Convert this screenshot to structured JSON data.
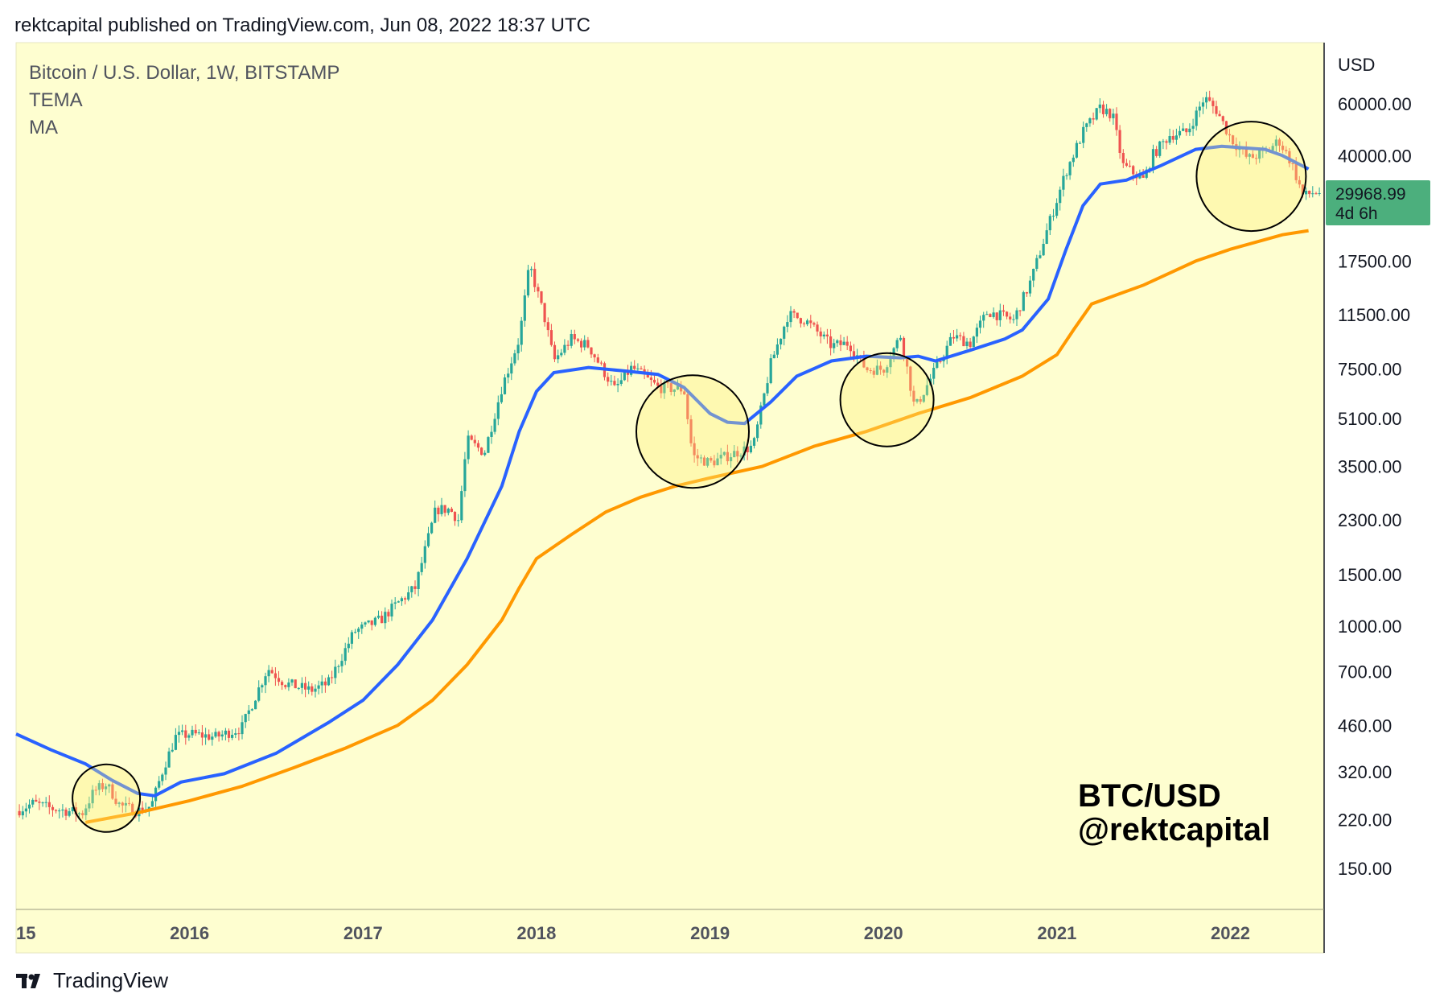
{
  "publisher": "rektcapital published on TradingView.com, Jun 08, 2022 18:37 UTC",
  "chart": {
    "legend": [
      "Bitcoin / U.S. Dollar, 1W, BITSTAMP",
      "TEMA",
      "MA"
    ],
    "currency_label": "USD",
    "watermark": [
      "BTC/USD",
      "@rektcapital"
    ],
    "last_price": "29968.99",
    "countdown": "4d 6h"
  },
  "footer": {
    "brand": "TradingView"
  },
  "colors": {
    "background": "#fefed0",
    "up": "#26a69a",
    "down": "#ef5350",
    "tema": "#2962ff",
    "ma": "#ff9800",
    "price_tag": "#4caf7d"
  },
  "chart_data": {
    "type": "candlestick",
    "title": "Bitcoin / U.S. Dollar, 1W, BITSTAMP",
    "y_scale": "log",
    "y_ticks": [
      150,
      220,
      320,
      460,
      700,
      1000,
      1500,
      2300,
      3500,
      5100,
      7500,
      11500,
      17500,
      40000,
      60000
    ],
    "y_tick_labels": [
      "150.00",
      "220.00",
      "320.00",
      "460.00",
      "700.00",
      "1000.00",
      "1500.00",
      "2300.00",
      "3500.00",
      "5100.00",
      "7500.00",
      "11500.00",
      "17500.00",
      "40000.00",
      "60000.00"
    ],
    "x_ticks": [
      {
        "label": "15",
        "t": 2015.0
      },
      {
        "label": "2016",
        "t": 2016.0
      },
      {
        "label": "2017",
        "t": 2017.0
      },
      {
        "label": "2018",
        "t": 2018.0
      },
      {
        "label": "2019",
        "t": 2019.0
      },
      {
        "label": "2020",
        "t": 2020.0
      },
      {
        "label": "2021",
        "t": 2021.0
      },
      {
        "label": "2022",
        "t": 2022.0
      }
    ],
    "x_range": [
      2015.0,
      2022.54
    ],
    "price_anchors": [
      [
        2015.0,
        235
      ],
      [
        2015.1,
        250
      ],
      [
        2015.2,
        240
      ],
      [
        2015.3,
        235
      ],
      [
        2015.38,
        230
      ],
      [
        2015.45,
        275
      ],
      [
        2015.52,
        290
      ],
      [
        2015.6,
        245
      ],
      [
        2015.7,
        235
      ],
      [
        2015.78,
        245
      ],
      [
        2015.85,
        330
      ],
      [
        2015.92,
        420
      ],
      [
        2016.0,
        430
      ],
      [
        2016.15,
        420
      ],
      [
        2016.3,
        450
      ],
      [
        2016.45,
        720
      ],
      [
        2016.55,
        640
      ],
      [
        2016.7,
        605
      ],
      [
        2016.8,
        640
      ],
      [
        2016.95,
        960
      ],
      [
        2017.1,
        1050
      ],
      [
        2017.2,
        1200
      ],
      [
        2017.3,
        1350
      ],
      [
        2017.42,
        2500
      ],
      [
        2017.5,
        2500
      ],
      [
        2017.55,
        2300
      ],
      [
        2017.6,
        4300
      ],
      [
        2017.7,
        3900
      ],
      [
        2017.8,
        6500
      ],
      [
        2017.9,
        9500
      ],
      [
        2017.96,
        17000
      ],
      [
        2018.0,
        14000
      ],
      [
        2018.05,
        11000
      ],
      [
        2018.1,
        8000
      ],
      [
        2018.2,
        9500
      ],
      [
        2018.3,
        9000
      ],
      [
        2018.45,
        6400
      ],
      [
        2018.55,
        7600
      ],
      [
        2018.7,
        6500
      ],
      [
        2018.85,
        6400
      ],
      [
        2018.9,
        3800
      ],
      [
        2019.0,
        3600
      ],
      [
        2019.15,
        3900
      ],
      [
        2019.25,
        4100
      ],
      [
        2019.35,
        7800
      ],
      [
        2019.45,
        11500
      ],
      [
        2019.55,
        11000
      ],
      [
        2019.7,
        9000
      ],
      [
        2019.8,
        9200
      ],
      [
        2019.9,
        7500
      ],
      [
        2020.0,
        7500
      ],
      [
        2020.1,
        9800
      ],
      [
        2020.18,
        5500
      ],
      [
        2020.3,
        7500
      ],
      [
        2020.4,
        9700
      ],
      [
        2020.5,
        9200
      ],
      [
        2020.6,
        11800
      ],
      [
        2020.75,
        11000
      ],
      [
        2020.85,
        15000
      ],
      [
        2020.95,
        23000
      ],
      [
        2021.05,
        35000
      ],
      [
        2021.15,
        48000
      ],
      [
        2021.25,
        58000
      ],
      [
        2021.32,
        55000
      ],
      [
        2021.38,
        37000
      ],
      [
        2021.5,
        33000
      ],
      [
        2021.55,
        40000
      ],
      [
        2021.65,
        47000
      ],
      [
        2021.75,
        48000
      ],
      [
        2021.85,
        63000
      ],
      [
        2021.92,
        57000
      ],
      [
        2022.0,
        46000
      ],
      [
        2022.1,
        39000
      ],
      [
        2022.2,
        41000
      ],
      [
        2022.28,
        45000
      ],
      [
        2022.35,
        38000
      ],
      [
        2022.42,
        29000
      ],
      [
        2022.48,
        30000
      ],
      [
        2022.52,
        29969
      ]
    ],
    "series": [
      {
        "name": "TEMA",
        "points": [
          [
            2015.0,
            430
          ],
          [
            2015.2,
            380
          ],
          [
            2015.4,
            340
          ],
          [
            2015.55,
            300
          ],
          [
            2015.7,
            270
          ],
          [
            2015.8,
            265
          ],
          [
            2015.95,
            295
          ],
          [
            2016.2,
            315
          ],
          [
            2016.5,
            370
          ],
          [
            2016.8,
            470
          ],
          [
            2017.0,
            560
          ],
          [
            2017.2,
            740
          ],
          [
            2017.4,
            1050
          ],
          [
            2017.6,
            1700
          ],
          [
            2017.8,
            3000
          ],
          [
            2017.9,
            4600
          ],
          [
            2018.0,
            6300
          ],
          [
            2018.1,
            7300
          ],
          [
            2018.3,
            7600
          ],
          [
            2018.5,
            7400
          ],
          [
            2018.7,
            7200
          ],
          [
            2018.85,
            6500
          ],
          [
            2019.0,
            5300
          ],
          [
            2019.1,
            4950
          ],
          [
            2019.2,
            4900
          ],
          [
            2019.35,
            5800
          ],
          [
            2019.5,
            7100
          ],
          [
            2019.7,
            8000
          ],
          [
            2019.9,
            8300
          ],
          [
            2020.1,
            8200
          ],
          [
            2020.2,
            8300
          ],
          [
            2020.3,
            8000
          ],
          [
            2020.5,
            8700
          ],
          [
            2020.7,
            9500
          ],
          [
            2020.8,
            10200
          ],
          [
            2020.95,
            13000
          ],
          [
            2021.05,
            19000
          ],
          [
            2021.15,
            27000
          ],
          [
            2021.25,
            32000
          ],
          [
            2021.4,
            33000
          ],
          [
            2021.6,
            37000
          ],
          [
            2021.8,
            42000
          ],
          [
            2021.95,
            43000
          ],
          [
            2022.2,
            42000
          ],
          [
            2022.3,
            40000
          ],
          [
            2022.45,
            36000
          ]
        ]
      },
      {
        "name": "MA",
        "points": [
          [
            2015.4,
            215
          ],
          [
            2015.7,
            232
          ],
          [
            2016.0,
            255
          ],
          [
            2016.3,
            285
          ],
          [
            2016.6,
            330
          ],
          [
            2016.9,
            385
          ],
          [
            2017.2,
            460
          ],
          [
            2017.4,
            560
          ],
          [
            2017.6,
            740
          ],
          [
            2017.8,
            1050
          ],
          [
            2017.9,
            1350
          ],
          [
            2018.0,
            1700
          ],
          [
            2018.2,
            2050
          ],
          [
            2018.4,
            2450
          ],
          [
            2018.6,
            2750
          ],
          [
            2018.8,
            3000
          ],
          [
            2019.0,
            3200
          ],
          [
            2019.3,
            3500
          ],
          [
            2019.6,
            4100
          ],
          [
            2019.9,
            4600
          ],
          [
            2020.2,
            5300
          ],
          [
            2020.5,
            6000
          ],
          [
            2020.8,
            7100
          ],
          [
            2021.0,
            8400
          ],
          [
            2021.1,
            10300
          ],
          [
            2021.2,
            12500
          ],
          [
            2021.5,
            14500
          ],
          [
            2021.8,
            17500
          ],
          [
            2022.0,
            19200
          ],
          [
            2022.3,
            21500
          ],
          [
            2022.45,
            22200
          ]
        ]
      }
    ],
    "circles": [
      {
        "t": 2015.52,
        "price": 260
      },
      {
        "t": 2018.9,
        "price": 4600
      },
      {
        "t": 2020.02,
        "price": 5900
      },
      {
        "t": 2022.12,
        "price": 34000
      }
    ]
  }
}
